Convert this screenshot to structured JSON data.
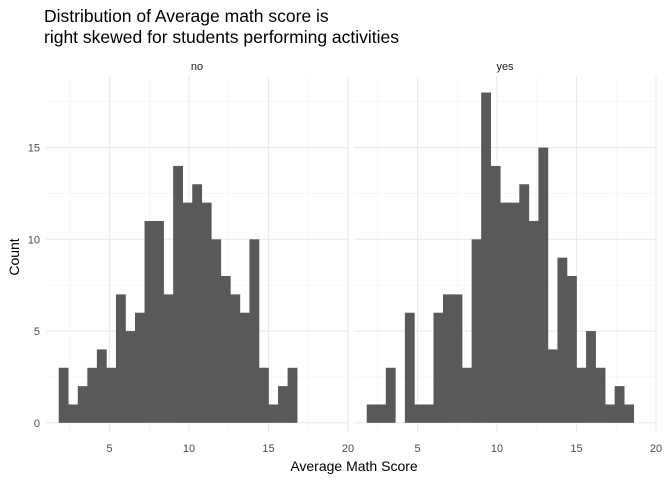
{
  "chart_data": {
    "type": "bar",
    "subtype": "faceted-histogram",
    "title_lines": [
      "Distribution of Average math score is",
      "right skewed for students performing activities"
    ],
    "xlabel": "Average Math Score",
    "ylabel": "Count",
    "xlim": [
      1.0,
      20.0
    ],
    "ylim": [
      -0.5,
      18.9
    ],
    "x_ticks": [
      5,
      10,
      15,
      20
    ],
    "y_ticks": [
      0,
      5,
      10,
      15
    ],
    "bin_width": 0.6,
    "grid": true,
    "bar_color": "#595959",
    "facets": [
      {
        "label": "no",
        "bin_start": 1.8,
        "counts": [
          3,
          1,
          2,
          3,
          4,
          3,
          7,
          5,
          6,
          11,
          11,
          7,
          14,
          12,
          13,
          12,
          10,
          8,
          7,
          6,
          10,
          3,
          1,
          2,
          3
        ]
      },
      {
        "label": "yes",
        "bin_start": 1.8,
        "counts": [
          1,
          1,
          3,
          0,
          6,
          1,
          1,
          6,
          7,
          7,
          3,
          10,
          18,
          14,
          12,
          12,
          13,
          11,
          15,
          4,
          9,
          8,
          3,
          5,
          3,
          1,
          2,
          1
        ]
      }
    ]
  }
}
